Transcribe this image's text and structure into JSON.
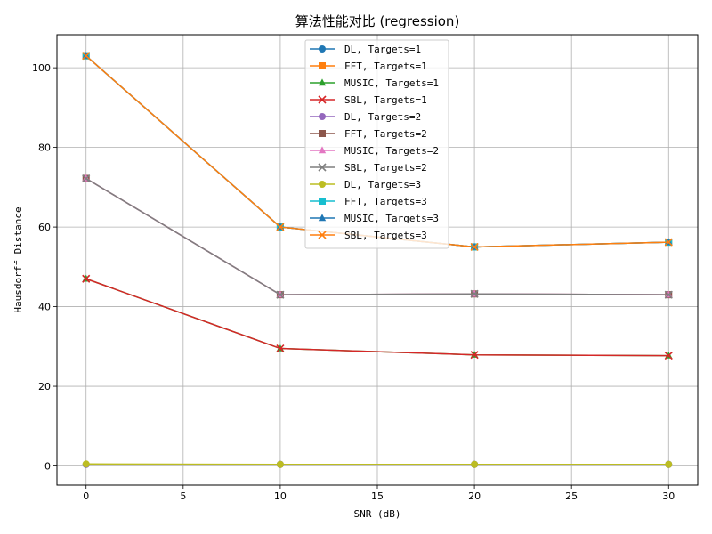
{
  "chart_data": {
    "type": "line",
    "title": "算法性能对比 (regression)",
    "xlabel": "SNR (dB)",
    "ylabel": "Hausdorff Distance",
    "xlim": [
      -1.5,
      31.5
    ],
    "ylim": [
      -4.8,
      108.3
    ],
    "xticks": [
      0,
      5,
      10,
      15,
      20,
      25,
      30
    ],
    "yticks": [
      0,
      20,
      40,
      60,
      80,
      100
    ],
    "grid": true,
    "legend_position": "top-center",
    "x": [
      0,
      10,
      20,
      30
    ],
    "series": [
      {
        "name": "DL, Targets=1",
        "values": [
          0.4,
          0.4,
          0.4,
          0.4
        ],
        "color": "#1f77b4",
        "marker": "circle"
      },
      {
        "name": "FFT, Targets=1",
        "values": [
          103,
          60,
          55,
          56.2
        ],
        "color": "#ff7f0e",
        "marker": "square"
      },
      {
        "name": "MUSIC, Targets=1",
        "values": [
          47,
          29.5,
          27.9,
          27.7
        ],
        "color": "#2ca02c",
        "marker": "triangle"
      },
      {
        "name": "SBL, Targets=1",
        "values": [
          47,
          29.5,
          27.9,
          27.7
        ],
        "color": "#d62728",
        "marker": "x"
      },
      {
        "name": "DL, Targets=2",
        "values": [
          0.4,
          0.4,
          0.4,
          0.4
        ],
        "color": "#9467bd",
        "marker": "circle"
      },
      {
        "name": "FFT, Targets=2",
        "values": [
          72.2,
          43,
          43.2,
          43
        ],
        "color": "#8c564b",
        "marker": "square"
      },
      {
        "name": "MUSIC, Targets=2",
        "values": [
          72.2,
          43,
          43.2,
          43
        ],
        "color": "#e377c2",
        "marker": "triangle"
      },
      {
        "name": "SBL, Targets=2",
        "values": [
          72.2,
          43,
          43.2,
          43
        ],
        "color": "#7f7f7f",
        "marker": "x"
      },
      {
        "name": "DL, Targets=3",
        "values": [
          0.5,
          0.4,
          0.4,
          0.4
        ],
        "color": "#bcbd22",
        "marker": "circle"
      },
      {
        "name": "FFT, Targets=3",
        "values": [
          103,
          60,
          55,
          56.2
        ],
        "color": "#17becf",
        "marker": "square"
      },
      {
        "name": "MUSIC, Targets=3",
        "values": [
          103,
          60,
          55,
          56.2
        ],
        "color": "#1f77b4",
        "marker": "triangle"
      },
      {
        "name": "SBL, Targets=3",
        "values": [
          103,
          60,
          55,
          56.2
        ],
        "color": "#ff7f0e",
        "marker": "x"
      }
    ]
  }
}
